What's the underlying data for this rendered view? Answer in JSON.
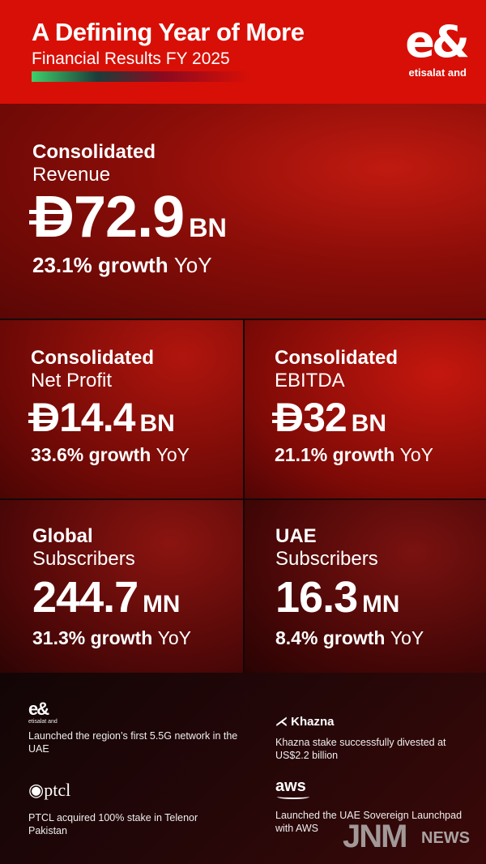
{
  "header": {
    "title": "A Defining Year of More",
    "subtitle": "Financial Results FY 2025",
    "logo_mark": "e&",
    "logo_word": "etisalat and"
  },
  "currency_symbol": "D",
  "revenue": {
    "kw": "Consolidated",
    "label": "Revenue",
    "value": "72.9",
    "unit": "BN",
    "growth": "23.1% growth",
    "yoy": "YoY"
  },
  "net_profit": {
    "kw": "Consolidated",
    "label": "Net Profit",
    "value": "14.4",
    "unit": "BN",
    "growth": "33.6% growth",
    "yoy": "YoY"
  },
  "ebitda": {
    "kw": "Consolidated",
    "label": "EBITDA",
    "value": "32",
    "unit": "BN",
    "growth": "21.1% growth",
    "yoy": "YoY"
  },
  "global_subs": {
    "kw": "Global",
    "label": "Subscribers",
    "value": "244.7",
    "unit": "MN",
    "growth": "31.3% growth",
    "yoy": "YoY"
  },
  "uae_subs": {
    "kw": "UAE",
    "label": "Subscribers",
    "value": "16.3",
    "unit": "MN",
    "growth": "8.4% growth",
    "yoy": "YoY"
  },
  "highlights": [
    {
      "logo": "e&",
      "logo_sub": "etisalat and",
      "text": "Launched the region’s first 5.5G network in the UAE"
    },
    {
      "logo": "Khazna",
      "text": "Khazna stake successfully divested at US$2.2 billion"
    },
    {
      "logo": "ptcl",
      "text": "PTCL acquired 100% stake in Telenor Pakistan"
    },
    {
      "logo": "aws",
      "text": "Launched the UAE Sovereign Launchpad with AWS"
    }
  ],
  "watermark": {
    "brand": "JNM",
    "suffix": "NEWS"
  },
  "colors": {
    "brand_red": "#d80f06",
    "footer_bg": "#150607"
  }
}
